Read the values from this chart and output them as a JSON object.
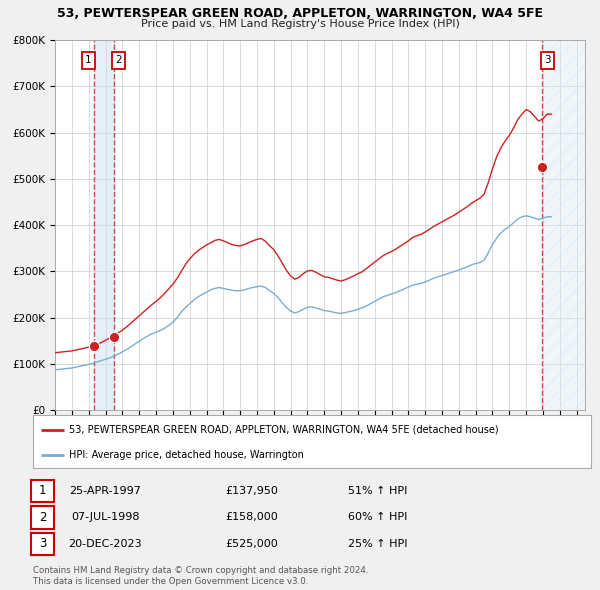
{
  "title": "53, PEWTERSPEAR GREEN ROAD, APPLETON, WARRINGTON, WA4 5FE",
  "subtitle": "Price paid vs. HM Land Registry's House Price Index (HPI)",
  "hpi_color": "#7aadd4",
  "price_color": "#cc2222",
  "dot_color": "#cc2222",
  "background_color": "#f0f0f0",
  "plot_bg": "#ffffff",
  "ylim": [
    0,
    800000
  ],
  "yticks": [
    0,
    100000,
    200000,
    300000,
    400000,
    500000,
    600000,
    700000,
    800000
  ],
  "ytick_labels": [
    "£0",
    "£100K",
    "£200K",
    "£300K",
    "£400K",
    "£500K",
    "£600K",
    "£700K",
    "£800K"
  ],
  "xlim_start": 1995.0,
  "xlim_end": 2026.5,
  "sales": [
    {
      "num": 1,
      "date_label": "25-APR-1997",
      "year": 1997.31,
      "price": 137950,
      "pct": "51%",
      "hpi_note": "↑ HPI"
    },
    {
      "num": 2,
      "date_label": "07-JUL-1998",
      "year": 1998.52,
      "price": 158000,
      "pct": "60%",
      "hpi_note": "↑ HPI"
    },
    {
      "num": 3,
      "date_label": "20-DEC-2023",
      "year": 2023.97,
      "price": 525000,
      "pct": "25%",
      "hpi_note": "↑ HPI"
    }
  ],
  "legend_line1": "53, PEWTERSPEAR GREEN ROAD, APPLETON, WARRINGTON, WA4 5FE (detached house)",
  "legend_line2": "HPI: Average price, detached house, Warrington",
  "footnote1": "Contains HM Land Registry data © Crown copyright and database right 2024.",
  "footnote2": "This data is licensed under the Open Government Licence v3.0.",
  "hpi_data": {
    "years": [
      1995.0,
      1995.25,
      1995.5,
      1995.75,
      1996.0,
      1996.25,
      1996.5,
      1996.75,
      1997.0,
      1997.25,
      1997.5,
      1997.75,
      1998.0,
      1998.25,
      1998.5,
      1998.75,
      1999.0,
      1999.25,
      1999.5,
      1999.75,
      2000.0,
      2000.25,
      2000.5,
      2000.75,
      2001.0,
      2001.25,
      2001.5,
      2001.75,
      2002.0,
      2002.25,
      2002.5,
      2002.75,
      2003.0,
      2003.25,
      2003.5,
      2003.75,
      2004.0,
      2004.25,
      2004.5,
      2004.75,
      2005.0,
      2005.25,
      2005.5,
      2005.75,
      2006.0,
      2006.25,
      2006.5,
      2006.75,
      2007.0,
      2007.25,
      2007.5,
      2007.75,
      2008.0,
      2008.25,
      2008.5,
      2008.75,
      2009.0,
      2009.25,
      2009.5,
      2009.75,
      2010.0,
      2010.25,
      2010.5,
      2010.75,
      2011.0,
      2011.25,
      2011.5,
      2011.75,
      2012.0,
      2012.25,
      2012.5,
      2012.75,
      2013.0,
      2013.25,
      2013.5,
      2013.75,
      2014.0,
      2014.25,
      2014.5,
      2014.75,
      2015.0,
      2015.25,
      2015.5,
      2015.75,
      2016.0,
      2016.25,
      2016.5,
      2016.75,
      2017.0,
      2017.25,
      2017.5,
      2017.75,
      2018.0,
      2018.25,
      2018.5,
      2018.75,
      2019.0,
      2019.25,
      2019.5,
      2019.75,
      2020.0,
      2020.25,
      2020.5,
      2020.75,
      2021.0,
      2021.25,
      2021.5,
      2021.75,
      2022.0,
      2022.25,
      2022.5,
      2022.75,
      2023.0,
      2023.25,
      2023.5,
      2023.75,
      2024.0,
      2024.25,
      2024.5
    ],
    "values": [
      87000,
      88000,
      89000,
      90000,
      91000,
      93000,
      95000,
      97000,
      99000,
      101000,
      104000,
      107000,
      110000,
      113000,
      117000,
      121000,
      126000,
      131000,
      137000,
      143000,
      149000,
      155000,
      160000,
      165000,
      168000,
      172000,
      177000,
      183000,
      190000,
      200000,
      212000,
      222000,
      230000,
      238000,
      245000,
      250000,
      255000,
      260000,
      263000,
      265000,
      263000,
      261000,
      259000,
      258000,
      258000,
      260000,
      263000,
      265000,
      267000,
      268000,
      265000,
      258000,
      252000,
      243000,
      232000,
      222000,
      214000,
      210000,
      213000,
      218000,
      222000,
      223000,
      221000,
      218000,
      215000,
      214000,
      212000,
      210000,
      209000,
      211000,
      213000,
      215000,
      218000,
      221000,
      225000,
      230000,
      235000,
      240000,
      245000,
      248000,
      251000,
      254000,
      258000,
      262000,
      266000,
      270000,
      272000,
      274000,
      277000,
      281000,
      285000,
      288000,
      291000,
      294000,
      297000,
      300000,
      303000,
      306000,
      310000,
      314000,
      317000,
      319000,
      324000,
      340000,
      358000,
      372000,
      383000,
      391000,
      397000,
      405000,
      413000,
      418000,
      420000,
      418000,
      415000,
      412000,
      415000,
      418000,
      418000
    ]
  },
  "price_data": {
    "years": [
      1995.0,
      1995.25,
      1995.5,
      1995.75,
      1996.0,
      1996.25,
      1996.5,
      1996.75,
      1997.0,
      1997.25,
      1997.5,
      1997.75,
      1998.0,
      1998.25,
      1998.5,
      1998.75,
      1999.0,
      1999.25,
      1999.5,
      1999.75,
      2000.0,
      2000.25,
      2000.5,
      2000.75,
      2001.0,
      2001.25,
      2001.5,
      2001.75,
      2002.0,
      2002.25,
      2002.5,
      2002.75,
      2003.0,
      2003.25,
      2003.5,
      2003.75,
      2004.0,
      2004.25,
      2004.5,
      2004.75,
      2005.0,
      2005.25,
      2005.5,
      2005.75,
      2006.0,
      2006.25,
      2006.5,
      2006.75,
      2007.0,
      2007.25,
      2007.5,
      2007.75,
      2008.0,
      2008.25,
      2008.5,
      2008.75,
      2009.0,
      2009.25,
      2009.5,
      2009.75,
      2010.0,
      2010.25,
      2010.5,
      2010.75,
      2011.0,
      2011.25,
      2011.5,
      2011.75,
      2012.0,
      2012.25,
      2012.5,
      2012.75,
      2013.0,
      2013.25,
      2013.5,
      2013.75,
      2014.0,
      2014.25,
      2014.5,
      2014.75,
      2015.0,
      2015.25,
      2015.5,
      2015.75,
      2016.0,
      2016.25,
      2016.5,
      2016.75,
      2017.0,
      2017.25,
      2017.5,
      2017.75,
      2018.0,
      2018.25,
      2018.5,
      2018.75,
      2019.0,
      2019.25,
      2019.5,
      2019.75,
      2020.0,
      2020.25,
      2020.5,
      2020.75,
      2021.0,
      2021.25,
      2021.5,
      2021.75,
      2022.0,
      2022.25,
      2022.5,
      2022.75,
      2023.0,
      2023.25,
      2023.5,
      2023.75,
      2024.0,
      2024.25,
      2024.5
    ],
    "values": [
      124000,
      125000,
      126000,
      127000,
      128000,
      130000,
      132000,
      134000,
      136000,
      138000,
      142000,
      146000,
      151000,
      156000,
      161000,
      167000,
      173000,
      180000,
      188000,
      196000,
      204000,
      212000,
      220000,
      228000,
      235000,
      243000,
      252000,
      262000,
      272000,
      285000,
      300000,
      315000,
      327000,
      337000,
      345000,
      351000,
      357000,
      362000,
      367000,
      369000,
      366000,
      362000,
      358000,
      356000,
      355000,
      358000,
      362000,
      366000,
      369000,
      371000,
      365000,
      355000,
      347000,
      333000,
      318000,
      302000,
      290000,
      283000,
      287000,
      295000,
      301000,
      302000,
      298000,
      293000,
      288000,
      287000,
      284000,
      281000,
      279000,
      282000,
      286000,
      290000,
      295000,
      299000,
      306000,
      313000,
      320000,
      327000,
      334000,
      339000,
      343000,
      348000,
      354000,
      360000,
      366000,
      373000,
      377000,
      380000,
      385000,
      391000,
      397000,
      402000,
      407000,
      412000,
      417000,
      422000,
      428000,
      434000,
      440000,
      447000,
      453000,
      458000,
      467000,
      492000,
      522000,
      548000,
      567000,
      582000,
      594000,
      610000,
      628000,
      640000,
      650000,
      645000,
      635000,
      625000,
      630000,
      640000,
      640000
    ]
  }
}
